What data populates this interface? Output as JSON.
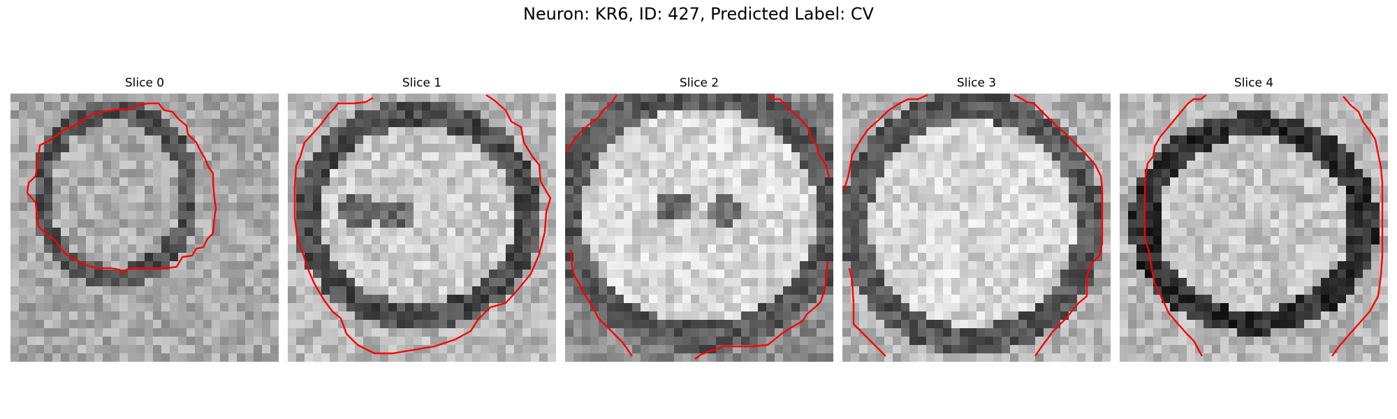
{
  "figure": {
    "title": "Neuron: KR6, ID: 427, Predicted Label: CV"
  },
  "panels": [
    {
      "title": "Slice 0"
    },
    {
      "title": "Slice 1"
    },
    {
      "title": "Slice 2"
    },
    {
      "title": "Slice 3"
    },
    {
      "title": "Slice 4"
    }
  ],
  "style": {
    "contour_color": "#ff0000",
    "colormap": "gray"
  }
}
